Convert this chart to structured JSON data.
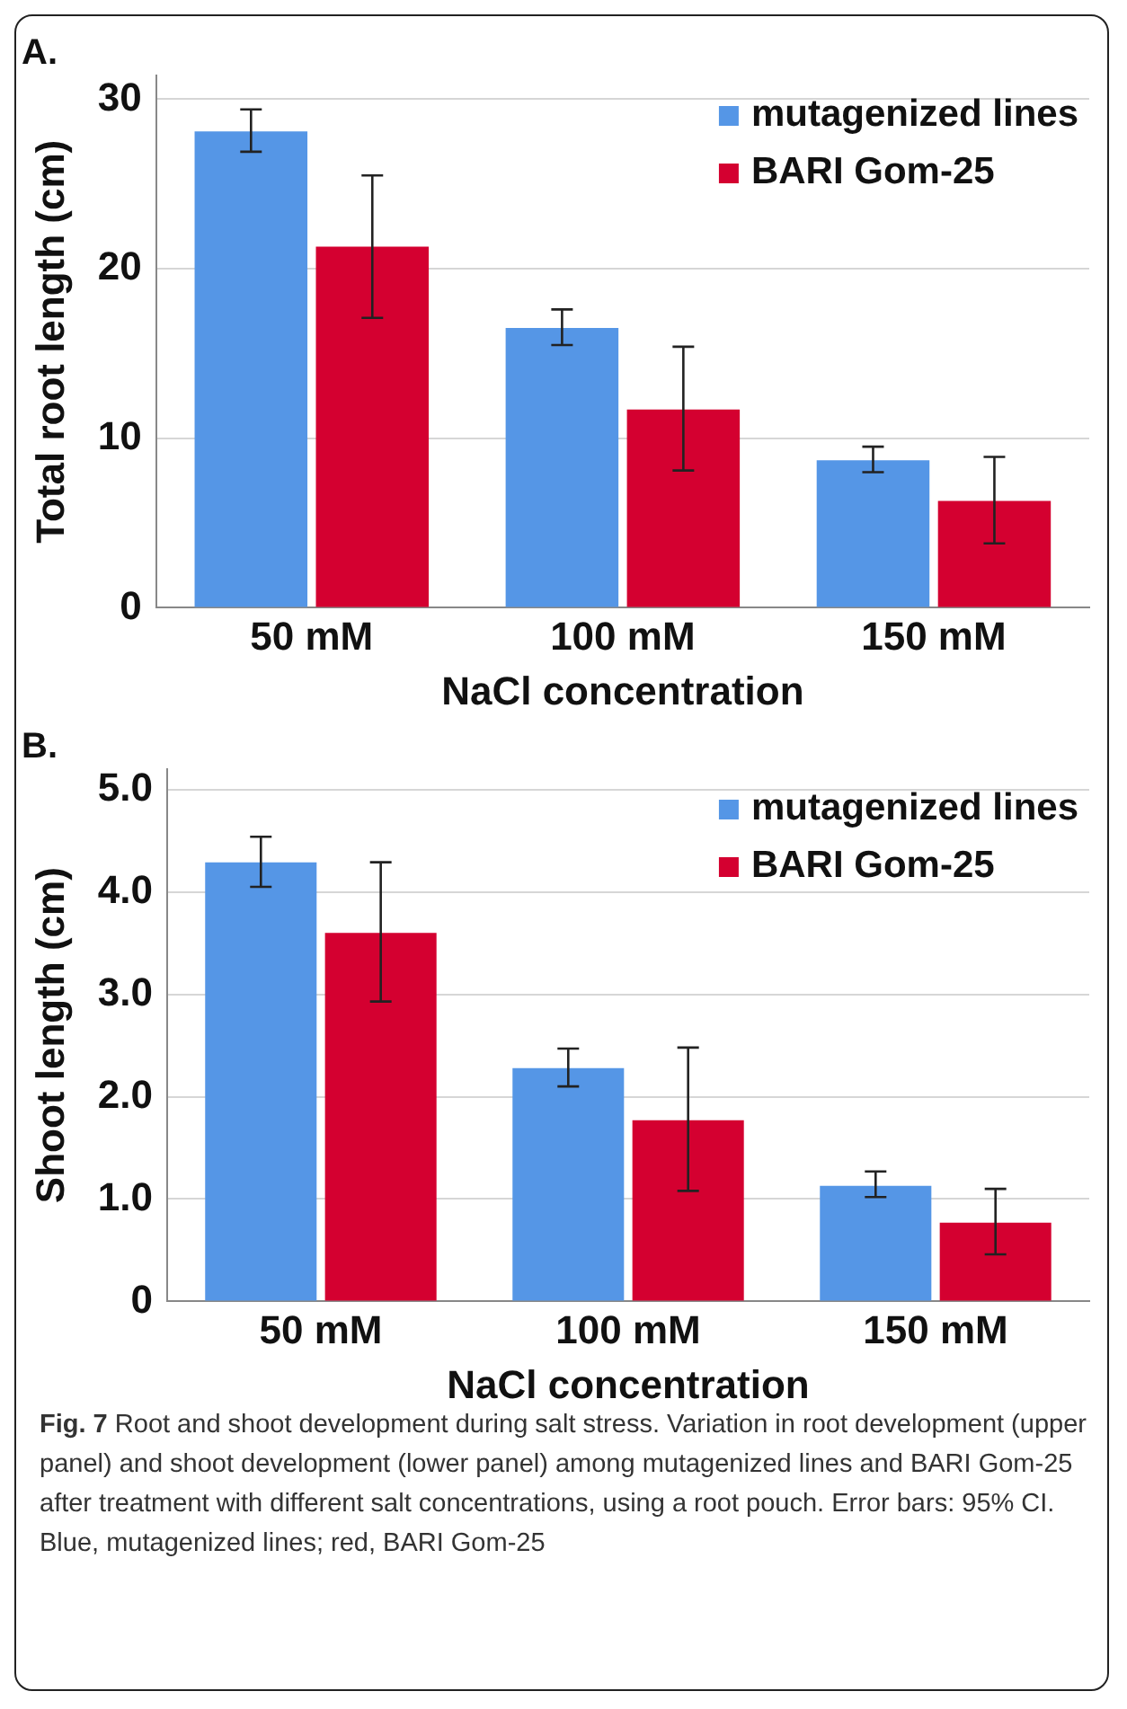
{
  "chart_data": [
    {
      "type": "bar",
      "title": "A.",
      "xlabel": "NaCl concentration",
      "ylabel": "Total root length (cm)",
      "categories": [
        "50 mM",
        "100 mM",
        "150 mM"
      ],
      "series": [
        {
          "name": "mutagenized lines",
          "color": "#5596e6",
          "values": [
            28.1,
            16.5,
            8.7
          ],
          "errors": [
            [
              26.9,
              29.4
            ],
            [
              15.5,
              17.6
            ],
            [
              8.0,
              9.5
            ]
          ]
        },
        {
          "name": "BARI Gom-25",
          "color": "#d40030",
          "values": [
            21.3,
            11.7,
            6.3
          ],
          "errors": [
            [
              17.1,
              25.5
            ],
            [
              8.1,
              15.4
            ],
            [
              3.8,
              8.9
            ]
          ]
        }
      ],
      "ylim": [
        0,
        31.4
      ],
      "yticks": [
        0,
        10,
        20,
        30
      ],
      "grid": "y",
      "legend": "top right"
    },
    {
      "type": "bar",
      "title": "B.",
      "xlabel": "NaCl concentration",
      "ylabel": "Shoot length (cm)",
      "categories": [
        "50 mM",
        "100 mM",
        "150 mM"
      ],
      "series": [
        {
          "name": "mutagenized lines",
          "color": "#5596e6",
          "values": [
            4.29,
            2.28,
            1.13
          ],
          "errors": [
            [
              4.05,
              4.54
            ],
            [
              2.1,
              2.47
            ],
            [
              1.02,
              1.27
            ]
          ]
        },
        {
          "name": "BARI Gom-25",
          "color": "#d40030",
          "values": [
            3.6,
            1.77,
            0.77
          ],
          "errors": [
            [
              2.93,
              4.29
            ],
            [
              1.08,
              2.48
            ],
            [
              0.46,
              1.1
            ]
          ]
        }
      ],
      "ylim": [
        0,
        5.2
      ],
      "yticks": [
        0,
        {
          "value": 1,
          "label": "1.0"
        },
        {
          "value": 2,
          "label": "2.0"
        },
        {
          "value": 3,
          "label": "3.0"
        },
        {
          "value": 4,
          "label": "4.0"
        },
        {
          "value": 5,
          "label": "5.0"
        }
      ],
      "grid": "y",
      "legend": "top right",
      "annotations": [
        "Fig. 7 Root and shoot development during salt stress. Variation in root development (upper panel) and shoot development (lower panel) among mutagenized lines and BARI Gom-25 after treatment with different salt concentrations, using a root pouch. Error bars: 95% CI. Blue, mutagenized lines; red, BARI Gom-25"
      ]
    }
  ]
}
